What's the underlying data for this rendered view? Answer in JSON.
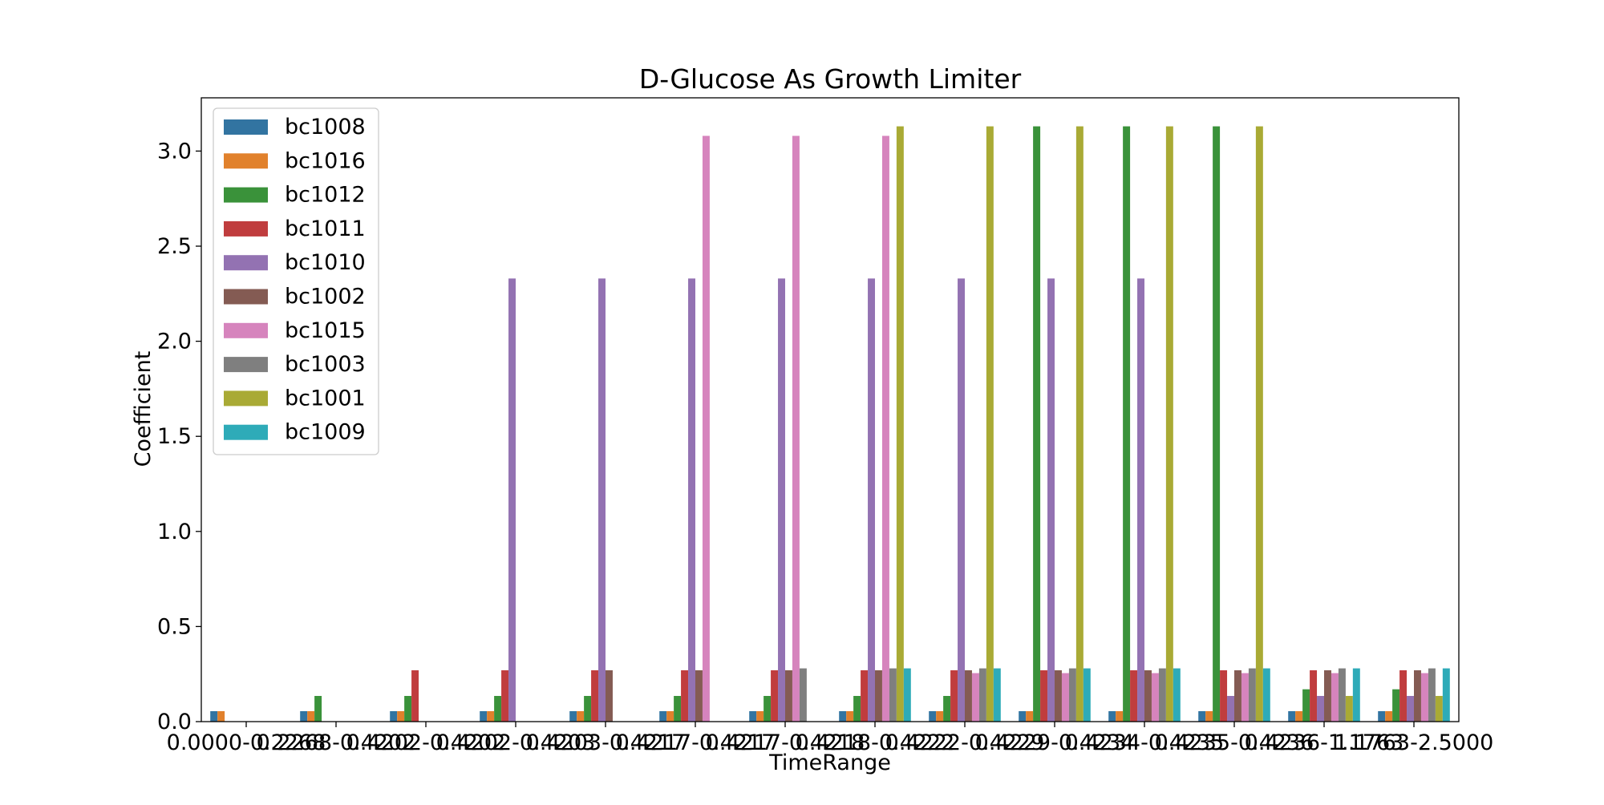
{
  "chart_data": {
    "type": "bar",
    "title": "D-Glucose As Growth Limiter",
    "xlabel": "TimeRange",
    "ylabel": "Coefficient",
    "ylim": [
      0,
      3.28
    ],
    "yticks": [
      "0.0",
      "0.5",
      "1.0",
      "1.5",
      "2.0",
      "2.5",
      "3.0"
    ],
    "ytick_values": [
      0,
      0.5,
      1.0,
      1.5,
      2.0,
      2.5,
      3.0
    ],
    "grid": false,
    "legend_position": "top-left",
    "categories": [
      "0.0000-0.2268",
      "0.2268-0.4202",
      "0.4202-0.4202",
      "0.4202-0.4203",
      "0.4203-0.4217",
      "0.4217-0.4217",
      "0.4217-0.4218",
      "0.4218-0.4222",
      "0.4222-0.4229",
      "0.4229-0.4234",
      "0.4234-0.4235",
      "0.4235-0.4236",
      "0.4236-1.1763",
      "1.1763-2.5000"
    ],
    "series": [
      {
        "name": "bc1008",
        "color": "#3274a1",
        "values": [
          0.055,
          0.055,
          0.055,
          0.055,
          0.055,
          0.055,
          0.055,
          0.055,
          0.055,
          0.055,
          0.055,
          0.055,
          0.055,
          0.055
        ]
      },
      {
        "name": "bc1016",
        "color": "#e1812c",
        "values": [
          0.055,
          0.055,
          0.055,
          0.055,
          0.055,
          0.055,
          0.055,
          0.055,
          0.055,
          0.055,
          0.055,
          0.055,
          0.055,
          0.055
        ]
      },
      {
        "name": "bc1012",
        "color": "#3a923a",
        "values": [
          0,
          0.135,
          0.135,
          0.135,
          0.135,
          0.135,
          0.135,
          0.135,
          0.135,
          3.13,
          3.13,
          3.13,
          0.17,
          0.17
        ]
      },
      {
        "name": "bc1011",
        "color": "#c03d3e",
        "values": [
          0,
          0,
          0.27,
          0.27,
          0.27,
          0.27,
          0.27,
          0.27,
          0.27,
          0.27,
          0.27,
          0.27,
          0.27,
          0.27
        ]
      },
      {
        "name": "bc1010",
        "color": "#9372b2",
        "values": [
          0,
          0,
          0,
          2.33,
          2.33,
          2.33,
          2.33,
          2.33,
          2.33,
          2.33,
          2.33,
          0.135,
          0.135,
          0.135
        ]
      },
      {
        "name": "bc1002",
        "color": "#845b53",
        "values": [
          0,
          0,
          0,
          0,
          0.27,
          0.27,
          0.27,
          0.27,
          0.27,
          0.27,
          0.27,
          0.27,
          0.27,
          0.27
        ]
      },
      {
        "name": "bc1015",
        "color": "#d684bd",
        "values": [
          0,
          0,
          0,
          0,
          0,
          3.08,
          3.08,
          3.08,
          0.255,
          0.255,
          0.255,
          0.255,
          0.255,
          0.255
        ]
      },
      {
        "name": "bc1003",
        "color": "#7f7f7f",
        "values": [
          0,
          0,
          0,
          0,
          0,
          0,
          0.28,
          0.28,
          0.28,
          0.28,
          0.28,
          0.28,
          0.28,
          0.28
        ]
      },
      {
        "name": "bc1001",
        "color": "#a9aa35",
        "values": [
          0,
          0,
          0,
          0,
          0,
          0,
          0,
          3.13,
          3.13,
          3.13,
          3.13,
          3.13,
          0.135,
          0.135
        ]
      },
      {
        "name": "bc1009",
        "color": "#2eabb8",
        "values": [
          0,
          0,
          0,
          0,
          0,
          0,
          0,
          0.28,
          0.28,
          0.28,
          0.28,
          0.28,
          0.28,
          0.28
        ]
      }
    ]
  }
}
